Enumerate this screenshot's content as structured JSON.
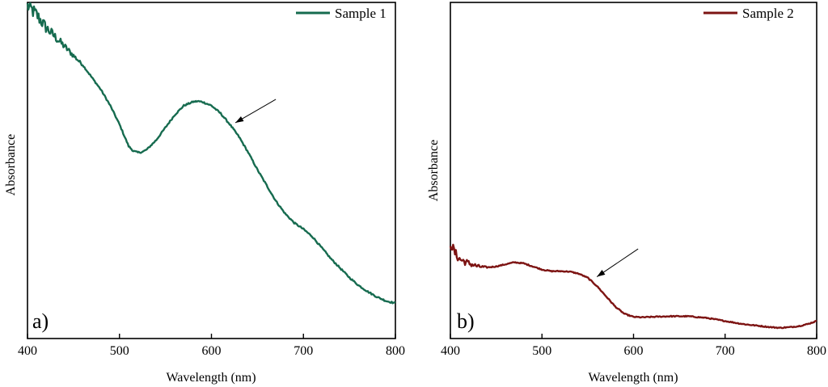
{
  "chart_data": [
    {
      "type": "line",
      "panel_label": "a)",
      "xlabel": "Wavelength (nm)",
      "ylabel": "Absorbance",
      "xlim": [
        400,
        800
      ],
      "ylim": [
        0,
        1
      ],
      "xticks": [
        400,
        500,
        600,
        700,
        800
      ],
      "y_ticks_labeled": false,
      "legend_position": "top-right",
      "series": [
        {
          "name": "Sample 1",
          "color": "#166b4f",
          "noisy_below_x": 460,
          "x": [
            400,
            410,
            420,
            430,
            440,
            450,
            460,
            470,
            480,
            490,
            500,
            510,
            515,
            520,
            525,
            530,
            540,
            550,
            560,
            570,
            580,
            585,
            590,
            600,
            610,
            620,
            630,
            640,
            650,
            660,
            670,
            680,
            690,
            700,
            710,
            720,
            730,
            740,
            750,
            760,
            770,
            780,
            790,
            800
          ],
          "values": [
            0.99,
            0.96,
            0.92,
            0.89,
            0.86,
            0.83,
            0.8,
            0.76,
            0.72,
            0.67,
            0.61,
            0.54,
            0.525,
            0.52,
            0.522,
            0.53,
            0.56,
            0.6,
            0.64,
            0.67,
            0.682,
            0.684,
            0.682,
            0.67,
            0.645,
            0.61,
            0.57,
            0.52,
            0.465,
            0.415,
            0.365,
            0.325,
            0.295,
            0.275,
            0.25,
            0.215,
            0.18,
            0.15,
            0.12,
            0.095,
            0.075,
            0.058,
            0.045,
            0.038
          ]
        }
      ],
      "annotations": [
        {
          "type": "arrow",
          "from": [
            670,
            0.69
          ],
          "to": [
            626,
            0.615
          ]
        }
      ]
    },
    {
      "type": "line",
      "panel_label": "b)",
      "xlabel": "Wavelength (nm)",
      "ylabel": "Absorbance",
      "xlim": [
        400,
        800
      ],
      "ylim": [
        0,
        1
      ],
      "xticks": [
        400,
        500,
        600,
        700,
        800
      ],
      "y_ticks_labeled": false,
      "legend_position": "top-right",
      "series": [
        {
          "name": "Sample 2",
          "color": "#7d1413",
          "noisy_below_x": 440,
          "x": [
            400,
            405,
            410,
            420,
            430,
            440,
            450,
            460,
            470,
            480,
            490,
            500,
            510,
            520,
            530,
            540,
            550,
            560,
            570,
            580,
            590,
            600,
            610,
            620,
            640,
            660,
            680,
            700,
            720,
            740,
            750,
            760,
            770,
            780,
            790,
            800
          ],
          "values": [
            0.41,
            0.36,
            0.33,
            0.31,
            0.295,
            0.29,
            0.295,
            0.305,
            0.315,
            0.31,
            0.295,
            0.28,
            0.272,
            0.272,
            0.27,
            0.26,
            0.24,
            0.2,
            0.15,
            0.1,
            0.065,
            0.05,
            0.048,
            0.05,
            0.053,
            0.053,
            0.045,
            0.03,
            0.015,
            0.005,
            0.0,
            -0.003,
            0.0,
            0.005,
            0.015,
            0.03
          ]
        }
      ],
      "annotations": [
        {
          "type": "arrow",
          "from": [
            605,
            0.38
          ],
          "to": [
            560,
            0.245
          ]
        }
      ]
    }
  ]
}
